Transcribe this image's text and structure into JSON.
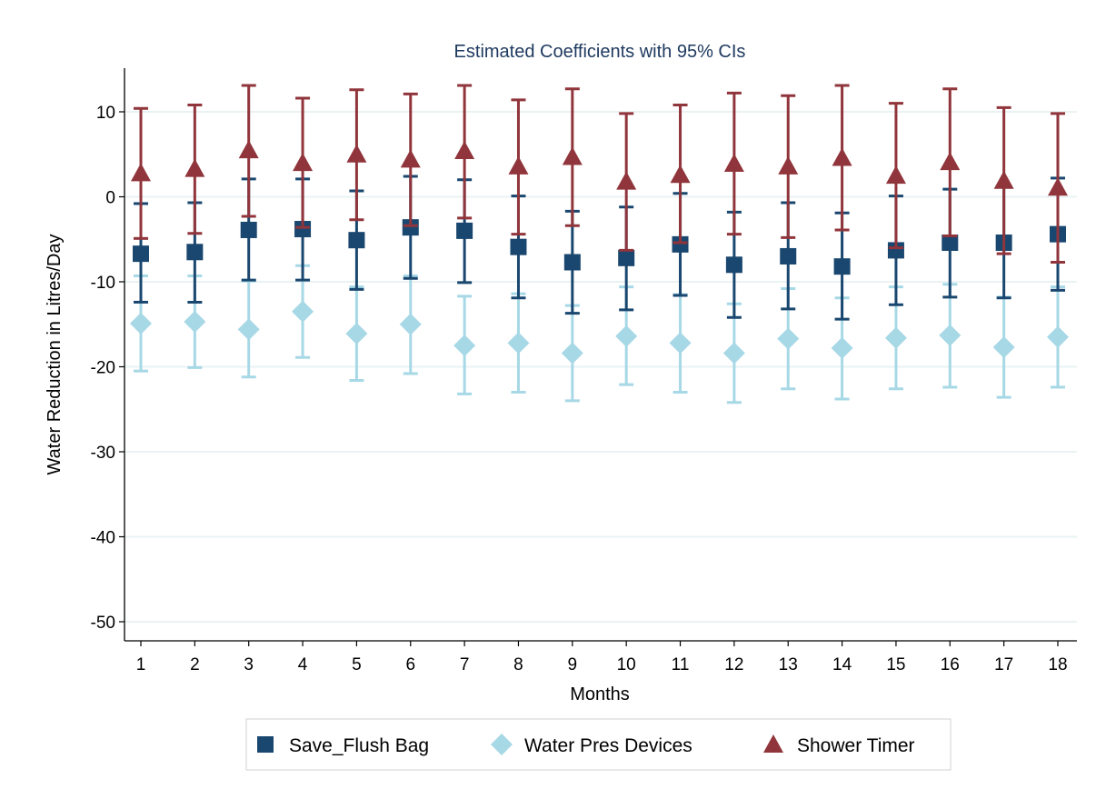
{
  "chart_data": {
    "type": "scatter",
    "title": "Estimated Coefficients with 95% CIs",
    "xlabel": "Months",
    "ylabel": "Water Reduction in Litres/Day",
    "x": [
      1,
      2,
      3,
      4,
      5,
      6,
      7,
      8,
      9,
      10,
      11,
      12,
      13,
      14,
      15,
      16,
      17,
      18
    ],
    "xticks": [
      "1",
      "2",
      "3",
      "4",
      "5",
      "6",
      "7",
      "8",
      "9",
      "10",
      "11",
      "12",
      "13",
      "14",
      "15",
      "16",
      "17",
      "18"
    ],
    "ylim": [
      -52,
      15
    ],
    "yticks": [
      10,
      0,
      -10,
      -20,
      -30,
      -40,
      -50
    ],
    "ytick_labels": [
      "10",
      "0",
      "-10",
      "-20",
      "-30",
      "-40",
      "-50"
    ],
    "grid": true,
    "legend_position": "bottom",
    "series": [
      {
        "name": "Save_Flush Bag",
        "marker": "square",
        "color": "#1a476f",
        "values": [
          -6.7,
          -6.5,
          -3.9,
          -3.8,
          -5.1,
          -3.6,
          -4.0,
          -5.9,
          -7.7,
          -7.2,
          -5.6,
          -8.0,
          -7.0,
          -8.2,
          -6.3,
          -5.4,
          -5.4,
          -4.4
        ],
        "lower": [
          -12.4,
          -12.4,
          -9.8,
          -9.8,
          -10.9,
          -9.6,
          -10.1,
          -11.9,
          -13.7,
          -13.3,
          -11.6,
          -14.2,
          -13.2,
          -14.4,
          -12.7,
          -11.8,
          -11.9,
          -11.0
        ],
        "upper": [
          -0.8,
          -0.7,
          2.1,
          2.1,
          0.7,
          2.4,
          2.0,
          0.1,
          -1.7,
          -1.2,
          0.4,
          -1.8,
          -0.7,
          -1.9,
          0.1,
          0.9,
          1.2,
          2.2
        ]
      },
      {
        "name": "Water Pres Devices",
        "marker": "diamond",
        "color": "#a7d8e6",
        "values": [
          -14.9,
          -14.7,
          -15.6,
          -13.5,
          -16.1,
          -15.0,
          -17.5,
          -17.2,
          -18.4,
          -16.4,
          -17.2,
          -18.4,
          -16.7,
          -17.8,
          -16.6,
          -16.3,
          -17.7,
          -16.5
        ],
        "lower": [
          -20.5,
          -20.1,
          -21.2,
          -18.9,
          -21.6,
          -20.8,
          -23.2,
          -23.0,
          -24.0,
          -22.1,
          -23.0,
          -24.2,
          -22.6,
          -23.8,
          -22.6,
          -22.4,
          -23.6,
          -22.4
        ],
        "upper": [
          -9.3,
          -9.3,
          -9.9,
          -8.1,
          -10.6,
          -9.3,
          -11.7,
          -11.4,
          -12.8,
          -10.6,
          -11.5,
          -12.6,
          -10.8,
          -11.9,
          -10.6,
          -10.3,
          -11.8,
          -10.6
        ]
      },
      {
        "name": "Shower Timer",
        "marker": "triangle",
        "color": "#90353b",
        "values": [
          2.8,
          3.3,
          5.5,
          4.0,
          5.0,
          4.4,
          5.4,
          3.6,
          4.7,
          1.8,
          2.6,
          3.9,
          3.6,
          4.6,
          2.5,
          4.1,
          1.9,
          1.1
        ],
        "lower": [
          -4.9,
          -4.3,
          -2.3,
          -3.6,
          -2.7,
          -3.4,
          -2.5,
          -4.4,
          -3.4,
          -6.3,
          -5.4,
          -4.4,
          -4.8,
          -3.9,
          -6.0,
          -4.6,
          -6.7,
          -7.7
        ],
        "upper": [
          10.4,
          10.8,
          13.1,
          11.6,
          12.6,
          12.1,
          13.1,
          11.4,
          12.7,
          9.8,
          10.8,
          12.2,
          11.9,
          13.1,
          11.0,
          12.7,
          10.5,
          9.8
        ]
      }
    ]
  }
}
